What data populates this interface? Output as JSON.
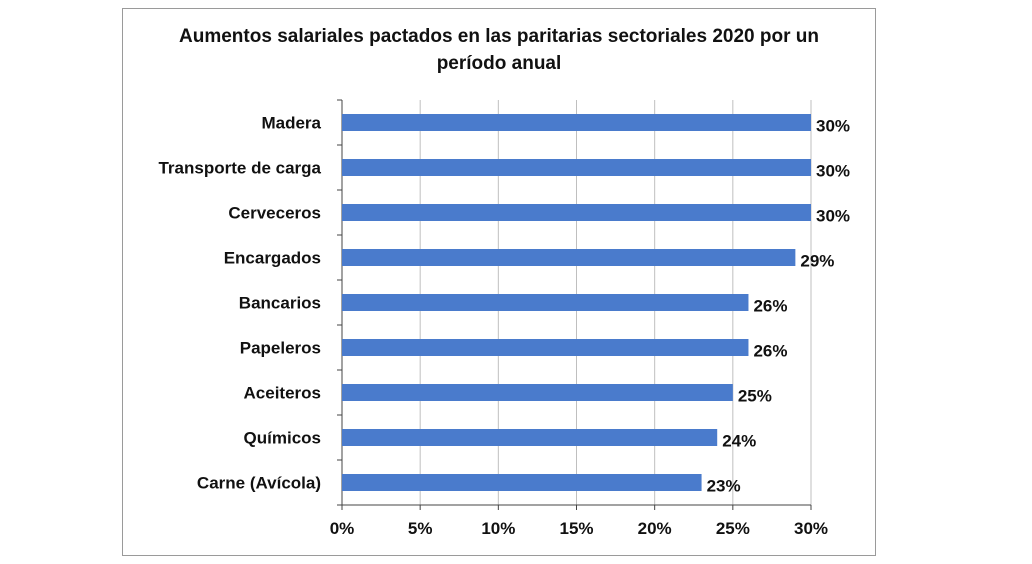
{
  "chart_data": {
    "type": "bar",
    "orientation": "horizontal",
    "title_line1": "Aumentos salariales pactados en las paritarias sectoriales 2020 por un",
    "title_line2": "período anual",
    "categories": [
      "Madera",
      "Transporte de carga",
      "Cerveceros",
      "Encargados",
      "Bancarios",
      "Papeleros",
      "Aceiteros",
      "Químicos",
      "Carne (Avícola)"
    ],
    "values": [
      30,
      30,
      30,
      29,
      26,
      26,
      25,
      24,
      23
    ],
    "data_labels": [
      "30%",
      "30%",
      "30%",
      "29%",
      "26%",
      "26%",
      "25%",
      "24%",
      "23%"
    ],
    "xlim": [
      0,
      30
    ],
    "x_ticks": [
      0,
      5,
      10,
      15,
      20,
      25,
      30
    ],
    "x_tick_labels": [
      "0%",
      "5%",
      "10%",
      "15%",
      "20%",
      "25%",
      "30%"
    ],
    "grid": "vertical",
    "legend": "none",
    "bar_color": "#4a7bcc",
    "grid_color": "#bfbfbf"
  }
}
